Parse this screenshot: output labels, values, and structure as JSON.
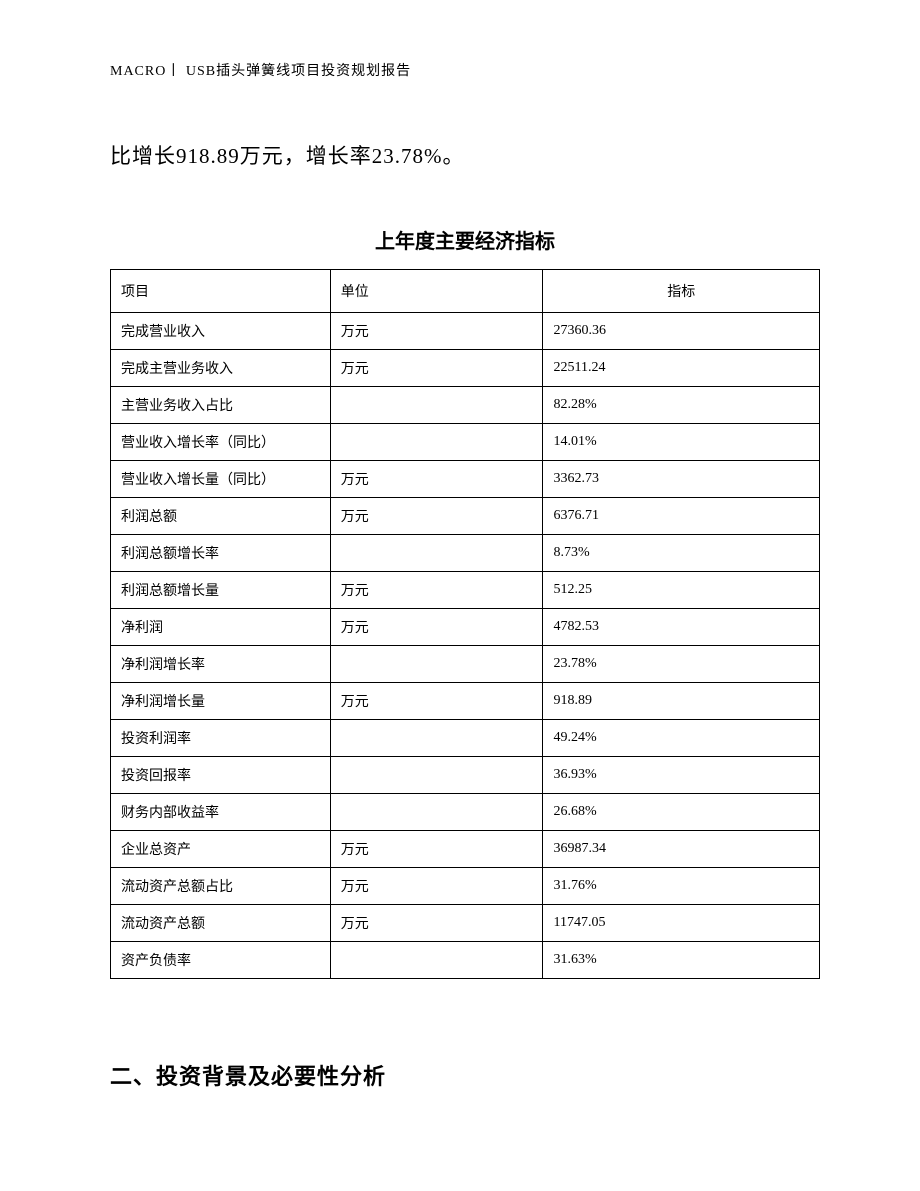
{
  "header": {
    "text": "MACRO丨 USB插头弹簧线项目投资规划报告"
  },
  "body": {
    "paragraph": "比增长918.89万元，增长率23.78%。"
  },
  "table": {
    "title": "上年度主要经济指标",
    "headers": {
      "col1": "项目",
      "col2": "单位",
      "col3": "指标"
    },
    "rows": [
      {
        "c1": "完成营业收入",
        "c2": "万元",
        "c3": "27360.36"
      },
      {
        "c1": "完成主营业务收入",
        "c2": "万元",
        "c3": "22511.24"
      },
      {
        "c1": "主营业务收入占比",
        "c2": "",
        "c3": "82.28%"
      },
      {
        "c1": "营业收入增长率（同比）",
        "c2": "",
        "c3": "14.01%"
      },
      {
        "c1": "营业收入增长量（同比）",
        "c2": "万元",
        "c3": "3362.73"
      },
      {
        "c1": "利润总额",
        "c2": "万元",
        "c3": "6376.71"
      },
      {
        "c1": "利润总额增长率",
        "c2": "",
        "c3": "8.73%"
      },
      {
        "c1": "利润总额增长量",
        "c2": "万元",
        "c3": "512.25"
      },
      {
        "c1": "净利润",
        "c2": "万元",
        "c3": "4782.53"
      },
      {
        "c1": "净利润增长率",
        "c2": "",
        "c3": "23.78%"
      },
      {
        "c1": "净利润增长量",
        "c2": "万元",
        "c3": "918.89"
      },
      {
        "c1": "投资利润率",
        "c2": "",
        "c3": "49.24%"
      },
      {
        "c1": "投资回报率",
        "c2": "",
        "c3": "36.93%"
      },
      {
        "c1": "财务内部收益率",
        "c2": "",
        "c3": "26.68%"
      },
      {
        "c1": "企业总资产",
        "c2": "万元",
        "c3": "36987.34"
      },
      {
        "c1": "流动资产总额占比",
        "c2": "万元",
        "c3": "31.76%"
      },
      {
        "c1": "流动资产总额",
        "c2": "万元",
        "c3": "11747.05"
      },
      {
        "c1": "资产负债率",
        "c2": "",
        "c3": "31.63%"
      }
    ]
  },
  "section": {
    "heading": "二、投资背景及必要性分析"
  },
  "styles": {
    "page_bg": "#ffffff",
    "text_color": "#000000",
    "border_color": "#000000",
    "header_fontsize": 14,
    "body_fontsize": 21,
    "table_title_fontsize": 20,
    "table_cell_fontsize": 14,
    "section_heading_fontsize": 22
  }
}
